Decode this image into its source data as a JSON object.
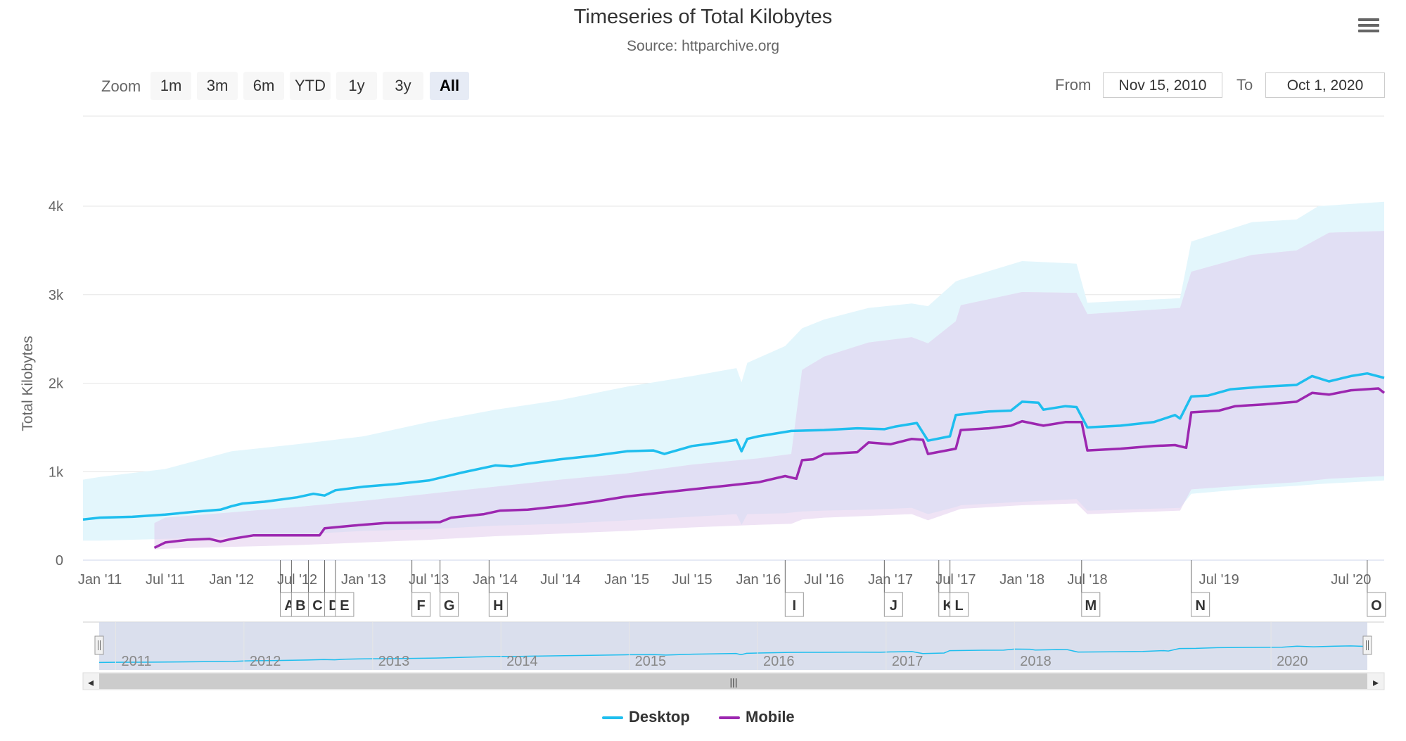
{
  "title": "Timeseries of Total Kilobytes",
  "subtitle": "Source: httparchive.org",
  "menu_icon": "hamburger-menu-icon",
  "zoom": {
    "label": "Zoom",
    "buttons": [
      "1m",
      "3m",
      "6m",
      "YTD",
      "1y",
      "3y",
      "All"
    ],
    "selected": "All"
  },
  "range": {
    "from_label": "From",
    "from_value": "Nov 15, 2010",
    "to_label": "To",
    "to_value": "Oct 1, 2020"
  },
  "colors": {
    "desktop": "#1ebeee",
    "mobile": "#9c27b0",
    "desktop_band": "#e3f6fc",
    "mobile_band": "#efe3f5",
    "overlap_band": "#e1dff4",
    "grid": "#e6e6e6",
    "navigator_mask": "#d4d9ea"
  },
  "chart_data": {
    "type": "line",
    "title": "Timeseries of Total Kilobytes",
    "subtitle": "Source: httparchive.org",
    "ylabel": "Total Kilobytes",
    "ylim": [
      0,
      4000
    ],
    "yticks": [
      0,
      1000,
      2000,
      3000,
      4000
    ],
    "ytick_labels": [
      "0",
      "1k",
      "2k",
      "3k",
      "4k"
    ],
    "xlim": [
      "2010-11-15",
      "2020-10-01"
    ],
    "xtick_labels": [
      {
        "date": "2011-01-01",
        "label": "Jan '11"
      },
      {
        "date": "2011-07-01",
        "label": "Jul '11"
      },
      {
        "date": "2012-01-01",
        "label": "Jan '12"
      },
      {
        "date": "2012-07-01",
        "label": "Jul '12"
      },
      {
        "date": "2013-01-01",
        "label": "Jan '13"
      },
      {
        "date": "2013-07-01",
        "label": "Jul '13"
      },
      {
        "date": "2014-01-01",
        "label": "Jan '14"
      },
      {
        "date": "2014-07-01",
        "label": "Jul '14"
      },
      {
        "date": "2015-01-01",
        "label": "Jan '15"
      },
      {
        "date": "2015-07-01",
        "label": "Jul '15"
      },
      {
        "date": "2016-01-01",
        "label": "Jan '16"
      },
      {
        "date": "2016-07-01",
        "label": "Jul '16"
      },
      {
        "date": "2017-01-01",
        "label": "Jan '17"
      },
      {
        "date": "2017-07-01",
        "label": "Jul '17"
      },
      {
        "date": "2018-01-01",
        "label": "Jan '18"
      },
      {
        "date": "2018-07-01",
        "label": "Jul '18"
      },
      {
        "date": "2019-07-01",
        "label": "Jul '19"
      },
      {
        "date": "2020-07-01",
        "label": "Jul '20"
      }
    ],
    "flags": [
      {
        "date": "2012-05-15",
        "label": "A"
      },
      {
        "date": "2012-06-15",
        "label": "B"
      },
      {
        "date": "2012-08-01",
        "label": "C"
      },
      {
        "date": "2012-09-15",
        "label": "D"
      },
      {
        "date": "2012-10-15",
        "label": "E"
      },
      {
        "date": "2013-05-15",
        "label": "F"
      },
      {
        "date": "2013-08-01",
        "label": "G"
      },
      {
        "date": "2013-12-15",
        "label": "H"
      },
      {
        "date": "2016-03-15",
        "label": "I"
      },
      {
        "date": "2016-12-15",
        "label": "J"
      },
      {
        "date": "2017-05-15",
        "label": "K"
      },
      {
        "date": "2017-06-15",
        "label": "L"
      },
      {
        "date": "2018-06-15",
        "label": "M"
      },
      {
        "date": "2019-04-15",
        "label": "N"
      },
      {
        "date": "2020-08-15",
        "label": "O"
      }
    ],
    "series": [
      {
        "name": "Desktop",
        "type": "line",
        "points": [
          [
            "2010-11-15",
            460
          ],
          [
            "2011-01-01",
            480
          ],
          [
            "2011-04-01",
            490
          ],
          [
            "2011-07-01",
            515
          ],
          [
            "2011-10-01",
            550
          ],
          [
            "2011-12-01",
            570
          ],
          [
            "2012-01-01",
            610
          ],
          [
            "2012-02-01",
            640
          ],
          [
            "2012-04-01",
            660
          ],
          [
            "2012-07-01",
            710
          ],
          [
            "2012-08-15",
            750
          ],
          [
            "2012-09-15",
            730
          ],
          [
            "2012-10-15",
            790
          ],
          [
            "2013-01-01",
            830
          ],
          [
            "2013-04-01",
            860
          ],
          [
            "2013-07-01",
            900
          ],
          [
            "2013-10-01",
            990
          ],
          [
            "2014-01-01",
            1070
          ],
          [
            "2014-02-15",
            1060
          ],
          [
            "2014-04-01",
            1090
          ],
          [
            "2014-07-01",
            1140
          ],
          [
            "2014-10-01",
            1180
          ],
          [
            "2015-01-01",
            1230
          ],
          [
            "2015-03-15",
            1240
          ],
          [
            "2015-04-15",
            1200
          ],
          [
            "2015-07-01",
            1290
          ],
          [
            "2015-09-15",
            1330
          ],
          [
            "2015-11-01",
            1360
          ],
          [
            "2015-11-15",
            1230
          ],
          [
            "2015-12-01",
            1370
          ],
          [
            "2016-01-01",
            1400
          ],
          [
            "2016-04-01",
            1460
          ],
          [
            "2016-07-01",
            1470
          ],
          [
            "2016-10-01",
            1490
          ],
          [
            "2016-12-15",
            1480
          ],
          [
            "2017-01-15",
            1510
          ],
          [
            "2017-03-15",
            1550
          ],
          [
            "2017-04-15",
            1350
          ],
          [
            "2017-06-15",
            1400
          ],
          [
            "2017-07-01",
            1640
          ],
          [
            "2017-10-01",
            1680
          ],
          [
            "2017-12-01",
            1690
          ],
          [
            "2018-01-01",
            1790
          ],
          [
            "2018-02-15",
            1780
          ],
          [
            "2018-03-01",
            1700
          ],
          [
            "2018-05-01",
            1740
          ],
          [
            "2018-06-01",
            1730
          ],
          [
            "2018-07-01",
            1500
          ],
          [
            "2018-10-01",
            1520
          ],
          [
            "2019-01-01",
            1560
          ],
          [
            "2019-03-01",
            1640
          ],
          [
            "2019-03-15",
            1600
          ],
          [
            "2019-04-15",
            1850
          ],
          [
            "2019-06-01",
            1860
          ],
          [
            "2019-08-01",
            1930
          ],
          [
            "2019-11-01",
            1960
          ],
          [
            "2020-02-01",
            1980
          ],
          [
            "2020-03-15",
            2080
          ],
          [
            "2020-05-01",
            2020
          ],
          [
            "2020-07-01",
            2080
          ],
          [
            "2020-08-15",
            2110
          ],
          [
            "2020-10-01",
            2060
          ]
        ]
      },
      {
        "name": "Mobile",
        "type": "line",
        "points": [
          [
            "2011-06-01",
            140
          ],
          [
            "2011-07-01",
            200
          ],
          [
            "2011-09-01",
            230
          ],
          [
            "2011-11-01",
            240
          ],
          [
            "2011-12-01",
            210
          ],
          [
            "2012-01-01",
            240
          ],
          [
            "2012-03-01",
            280
          ],
          [
            "2012-07-01",
            280
          ],
          [
            "2012-09-01",
            280
          ],
          [
            "2012-09-15",
            360
          ],
          [
            "2012-12-01",
            390
          ],
          [
            "2013-03-01",
            420
          ],
          [
            "2013-08-01",
            430
          ],
          [
            "2013-09-01",
            480
          ],
          [
            "2013-12-01",
            520
          ],
          [
            "2014-01-15",
            560
          ],
          [
            "2014-04-01",
            570
          ],
          [
            "2014-07-01",
            610
          ],
          [
            "2014-10-01",
            660
          ],
          [
            "2015-01-01",
            720
          ],
          [
            "2015-04-01",
            760
          ],
          [
            "2015-07-01",
            800
          ],
          [
            "2015-10-01",
            840
          ],
          [
            "2016-01-01",
            880
          ],
          [
            "2016-03-15",
            950
          ],
          [
            "2016-04-15",
            920
          ],
          [
            "2016-05-01",
            1130
          ],
          [
            "2016-06-01",
            1140
          ],
          [
            "2016-07-01",
            1200
          ],
          [
            "2016-10-01",
            1220
          ],
          [
            "2016-11-01",
            1330
          ],
          [
            "2017-01-01",
            1310
          ],
          [
            "2017-03-01",
            1370
          ],
          [
            "2017-04-01",
            1360
          ],
          [
            "2017-04-15",
            1200
          ],
          [
            "2017-07-01",
            1260
          ],
          [
            "2017-07-15",
            1470
          ],
          [
            "2017-10-01",
            1490
          ],
          [
            "2017-12-01",
            1520
          ],
          [
            "2018-01-01",
            1570
          ],
          [
            "2018-03-01",
            1520
          ],
          [
            "2018-05-01",
            1560
          ],
          [
            "2018-06-15",
            1560
          ],
          [
            "2018-07-01",
            1240
          ],
          [
            "2018-10-01",
            1260
          ],
          [
            "2019-01-01",
            1290
          ],
          [
            "2019-03-01",
            1300
          ],
          [
            "2019-04-01",
            1270
          ],
          [
            "2019-04-15",
            1670
          ],
          [
            "2019-07-01",
            1690
          ],
          [
            "2019-08-15",
            1740
          ],
          [
            "2019-11-01",
            1760
          ],
          [
            "2020-02-01",
            1790
          ],
          [
            "2020-03-15",
            1890
          ],
          [
            "2020-05-01",
            1870
          ],
          [
            "2020-07-01",
            1920
          ],
          [
            "2020-09-15",
            1940
          ],
          [
            "2020-10-01",
            1890
          ]
        ]
      },
      {
        "name": "Desktop range",
        "type": "arearange",
        "points": [
          [
            "2010-11-15",
            220,
            910
          ],
          [
            "2011-01-01",
            220,
            940
          ],
          [
            "2011-07-01",
            240,
            1030
          ],
          [
            "2012-01-01",
            260,
            1230
          ],
          [
            "2012-07-01",
            290,
            1310
          ],
          [
            "2013-01-01",
            330,
            1400
          ],
          [
            "2013-07-01",
            350,
            1560
          ],
          [
            "2014-01-01",
            390,
            1700
          ],
          [
            "2014-07-01",
            410,
            1810
          ],
          [
            "2015-01-01",
            450,
            1960
          ],
          [
            "2015-07-01",
            490,
            2080
          ],
          [
            "2015-11-01",
            520,
            2170
          ],
          [
            "2015-11-15",
            400,
            2010
          ],
          [
            "2015-12-01",
            520,
            2230
          ],
          [
            "2016-03-15",
            530,
            2420
          ],
          [
            "2016-05-01",
            550,
            2620
          ],
          [
            "2016-07-01",
            560,
            2720
          ],
          [
            "2016-11-01",
            570,
            2850
          ],
          [
            "2017-03-01",
            590,
            2900
          ],
          [
            "2017-04-15",
            520,
            2870
          ],
          [
            "2017-07-01",
            600,
            3150
          ],
          [
            "2017-07-15",
            620,
            3170
          ],
          [
            "2018-01-01",
            660,
            3380
          ],
          [
            "2018-06-01",
            690,
            3350
          ],
          [
            "2018-07-01",
            560,
            2910
          ],
          [
            "2019-03-15",
            590,
            2960
          ],
          [
            "2019-04-15",
            750,
            3600
          ],
          [
            "2019-10-01",
            810,
            3820
          ],
          [
            "2020-02-01",
            840,
            3850
          ],
          [
            "2020-04-01",
            860,
            4000
          ],
          [
            "2020-10-01",
            900,
            4050
          ]
        ]
      },
      {
        "name": "Mobile range",
        "type": "arearange",
        "points": [
          [
            "2011-06-01",
            120,
            420
          ],
          [
            "2011-07-01",
            130,
            480
          ],
          [
            "2012-01-01",
            150,
            540
          ],
          [
            "2012-07-01",
            170,
            600
          ],
          [
            "2013-01-01",
            200,
            670
          ],
          [
            "2013-07-01",
            230,
            750
          ],
          [
            "2014-01-01",
            270,
            830
          ],
          [
            "2014-07-01",
            300,
            910
          ],
          [
            "2015-01-01",
            330,
            980
          ],
          [
            "2015-07-01",
            370,
            1080
          ],
          [
            "2016-01-01",
            400,
            1150
          ],
          [
            "2016-04-01",
            410,
            1200
          ],
          [
            "2016-05-01",
            460,
            2150
          ],
          [
            "2016-07-01",
            480,
            2300
          ],
          [
            "2016-11-01",
            500,
            2460
          ],
          [
            "2017-03-01",
            520,
            2520
          ],
          [
            "2017-04-15",
            450,
            2450
          ],
          [
            "2017-07-01",
            560,
            2700
          ],
          [
            "2017-07-15",
            580,
            2880
          ],
          [
            "2018-01-01",
            620,
            3030
          ],
          [
            "2018-06-01",
            640,
            3020
          ],
          [
            "2018-07-01",
            520,
            2780
          ],
          [
            "2019-03-15",
            560,
            2850
          ],
          [
            "2019-04-15",
            800,
            3260
          ],
          [
            "2019-10-01",
            850,
            3450
          ],
          [
            "2020-02-01",
            880,
            3500
          ],
          [
            "2020-05-01",
            920,
            3700
          ],
          [
            "2020-10-01",
            950,
            3720
          ]
        ]
      }
    ],
    "legend": [
      "Desktop",
      "Mobile"
    ],
    "legend_position": "bottom-center",
    "grid": true,
    "navigator": {
      "year_labels": [
        "2011",
        "2012",
        "2013",
        "2014",
        "2015",
        "2016",
        "2017",
        "2018",
        "2020"
      ],
      "handle_glyph": "|||",
      "scroll_left_icon": "◂",
      "scroll_right_icon": "▸"
    }
  }
}
